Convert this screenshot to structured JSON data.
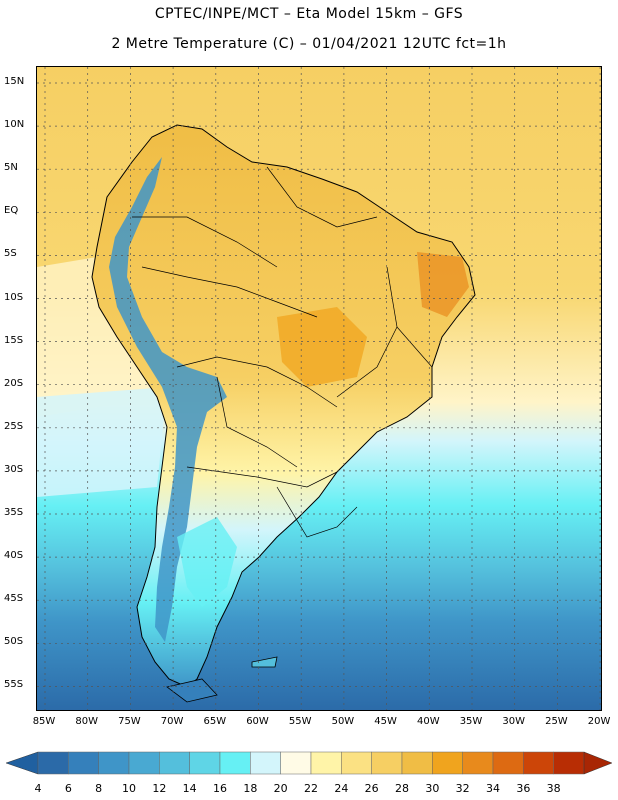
{
  "header": {
    "line1": "CPTEC/INPE/MCT –  Eta Model 15km – GFS",
    "line2": "2 Metre Temperature (C) – 01/04/2021 12UTC fct=1h"
  },
  "map": {
    "lat_labels": [
      "15N",
      "10N",
      "5N",
      "EQ",
      "5S",
      "10S",
      "15S",
      "20S",
      "25S",
      "30S",
      "35S",
      "40S",
      "45S",
      "50S",
      "55S"
    ],
    "lon_labels": [
      "85W",
      "80W",
      "75W",
      "70W",
      "65W",
      "60W",
      "55W",
      "50W",
      "45W",
      "40W",
      "35W",
      "30W",
      "25W",
      "20W"
    ]
  },
  "legend": {
    "values": [
      "4",
      "6",
      "8",
      "10",
      "12",
      "14",
      "16",
      "18",
      "20",
      "22",
      "24",
      "26",
      "28",
      "30",
      "32",
      "34",
      "36",
      "38"
    ],
    "colors": [
      "#2b6aa8",
      "#3580bb",
      "#3f95c8",
      "#49a9d2",
      "#54bfdc",
      "#5fd5e6",
      "#66f0f4",
      "#d3f5fb",
      "#fffbe6",
      "#fff4a8",
      "#fbe183",
      "#f6cf63",
      "#f0bd45",
      "#f0a41e",
      "#e88a1c",
      "#dd6a12",
      "#cc4508",
      "#b82d04"
    ],
    "low_color": "#2060a0",
    "high_color": "#a82604"
  }
}
